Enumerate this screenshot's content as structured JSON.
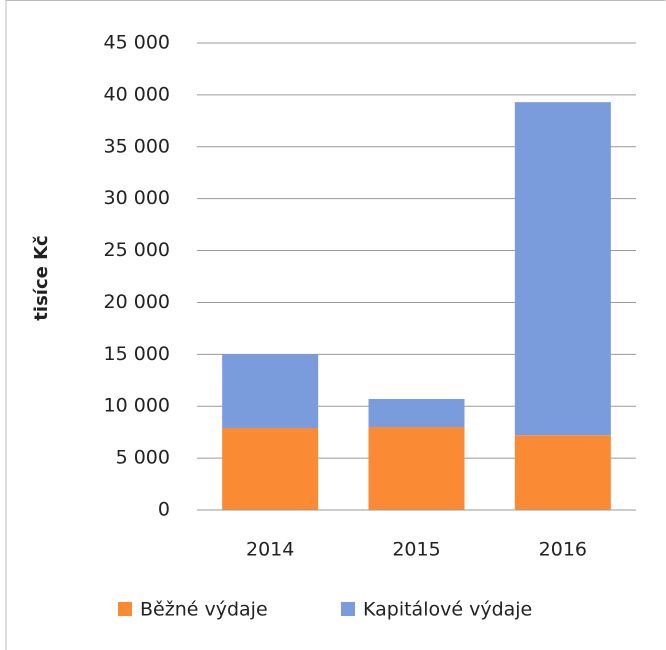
{
  "chart_data": {
    "type": "stacked_bar",
    "y_label": "tisíce Kč",
    "categories": [
      "2014",
      "2015",
      "2016"
    ],
    "series": [
      {
        "name": "Běžné výdaje",
        "color": "#fb8a35",
        "values": [
          7900,
          8000,
          7200
        ]
      },
      {
        "name": "Kapitálové výdaje",
        "color": "#7a9cdc",
        "values": [
          7100,
          2700,
          32100
        ]
      }
    ],
    "ylim": [
      0,
      45000
    ],
    "yticks": [
      0,
      {
        "value": 5000,
        "label": "5 000"
      },
      {
        "value": 10000,
        "label": "10 000"
      },
      {
        "value": 15000,
        "label": "15 000"
      },
      {
        "value": 20000,
        "label": "20 000"
      },
      {
        "value": 25000,
        "label": "25 000"
      },
      {
        "value": 30000,
        "label": "30 000"
      },
      {
        "value": 35000,
        "label": "35 000"
      },
      {
        "value": 40000,
        "label": "40 000"
      },
      {
        "value": 45000,
        "label": "45 000"
      }
    ],
    "grid": true,
    "legend": "bottom"
  }
}
